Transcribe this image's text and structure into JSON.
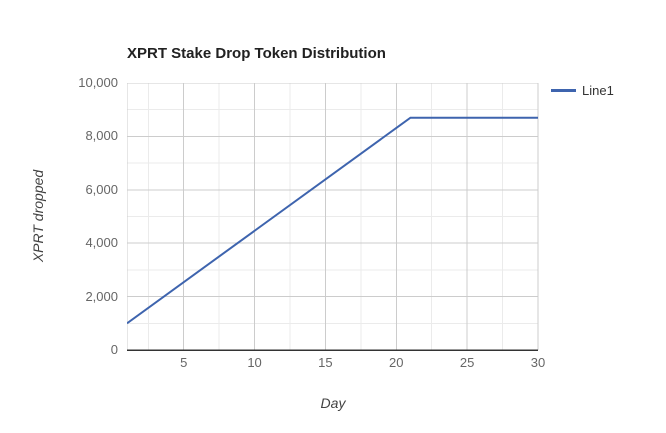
{
  "page": {
    "background_color": "#ffffff"
  },
  "chart_data": {
    "type": "line",
    "title": "XPRT Stake Drop Token Distribution",
    "xlabel": "Day",
    "ylabel": "XPRT dropped",
    "xlim": [
      1,
      30
    ],
    "ylim": [
      0,
      10000
    ],
    "x_major_ticks": [
      5,
      10,
      15,
      20,
      25,
      30
    ],
    "x_minor_ticks": [
      2.5,
      7.5,
      12.5,
      17.5,
      22.5,
      27.5
    ],
    "y_major_ticks": [
      0,
      2000,
      4000,
      6000,
      8000,
      10000
    ],
    "y_major_tick_labels": [
      "0",
      "2,000",
      "4,000",
      "6,000",
      "8,000",
      "10,000"
    ],
    "y_minor_ticks": [
      1000,
      3000,
      5000,
      7000,
      9000
    ],
    "grid": true,
    "legend_position": "right",
    "series": [
      {
        "name": "Line1",
        "color": "#3e64ae",
        "points": [
          [
            1,
            1000
          ],
          [
            21,
            8700
          ],
          [
            30,
            8700
          ]
        ]
      }
    ],
    "colors": {
      "grid_major": "#cccccc",
      "grid_minor": "#ebebeb",
      "axis_line": "#333333",
      "tick_label": "#666666",
      "title": "#212121",
      "axis_title": "#424242",
      "legend_text": "#333333"
    }
  }
}
